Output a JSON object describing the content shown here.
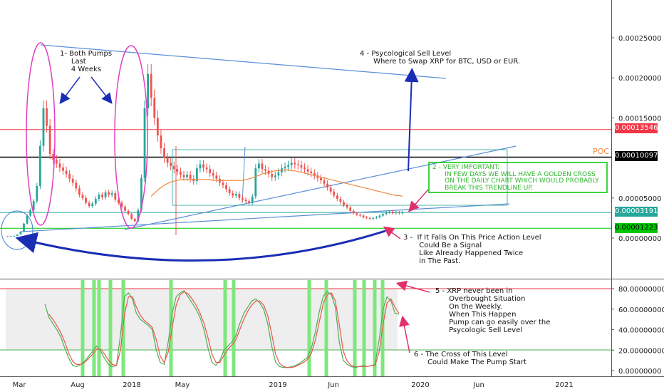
{
  "chart_data": [
    {
      "type": "candlestick",
      "price_axis": {
        "ticks": [
          "0.00025000",
          "0.00020000",
          "0.00015000",
          "0.00005000",
          "0.00000000"
        ],
        "ylim": [
          -1.2e-05,
          0.00029
        ]
      },
      "time_axis": {
        "ticks": [
          "Mar",
          "Aug",
          "2018",
          "May",
          "2019",
          "Jun",
          "2020",
          "Jun",
          "2021"
        ]
      },
      "price_series": [
        2.4e-06,
        2.3e-06,
        2.5e-06,
        2.8e-06,
        4.5e-06,
        8e-06,
        1.8e-05,
        2.8e-05,
        3.5e-05,
        4.6e-05,
        6.5e-05,
        0.000115,
        0.000162,
        0.00014,
        0.000105,
        9.8e-05,
        9.3e-05,
        8.8e-05,
        8.4e-05,
        8e-05,
        7.4e-05,
        6.9e-05,
        6.2e-05,
        5.4e-05,
        5e-05,
        4.4e-05,
        4e-05,
        4.3e-05,
        4.9e-05,
        5.4e-05,
        5.1e-05,
        5.7e-05,
        5.4e-05,
        5.6e-05,
        4.8e-05,
        4.4e-05,
        3.9e-05,
        3.4e-05,
        3e-05,
        2.4e-05,
        2.1e-05,
        3.5e-05,
        7.5e-05,
        0.000162,
        0.000205,
        0.000175,
        0.00015,
        0.000128,
        0.000112,
        0.0001,
        9.4e-05,
        9e-05,
        8.6e-05,
        8.3e-05,
        7.9e-05,
        7.6e-05,
        7.9e-05,
        7.4e-05,
        7.1e-05,
        8.7e-05,
        9.2e-05,
        8.8e-05,
        8.6e-05,
        8.1e-05,
        7.8e-05,
        7.4e-05,
        6.9e-05,
        6.6e-05,
        6.1e-05,
        5.6e-05,
        5.3e-05,
        5.5e-05,
        5e-05,
        4.8e-05,
        4.6e-05,
        4.4e-05,
        5.2e-05,
        8.7e-05,
        9.3e-05,
        8.6e-05,
        8.4e-05,
        8e-05,
        7.6e-05,
        7.8e-05,
        8.2e-05,
        8.7e-05,
        8.9e-05,
        9.1e-05,
        9.4e-05,
        9.2e-05,
        9.1e-05,
        8.8e-05,
        8.6e-05,
        8.3e-05,
        8.1e-05,
        7.8e-05,
        7.5e-05,
        7.2e-05,
        6.8e-05,
        6.3e-05,
        5.8e-05,
        5.3e-05,
        4.9e-05,
        4.5e-05,
        4.1e-05,
        3.8e-05,
        3.4e-05,
        3.1e-05,
        2.9e-05,
        2.8e-05,
        2.6e-05,
        2.5e-05,
        2.4e-05,
        2.5e-05,
        2.6e-05,
        2.8e-05,
        3e-05,
        3.2e-05,
        3.3e-05,
        3.1e-05,
        3.2e-05,
        3.1e-05,
        3.2e-05
      ],
      "horizontal_levels": [
        {
          "price": 0.00013546,
          "label": "0.00013546",
          "color": "#f23645"
        },
        {
          "price": 0.00010097,
          "label": "0.00010097",
          "color": "#000000",
          "tag": "POC"
        },
        {
          "price": 3.191e-05,
          "label": "0.00003191",
          "color": "#26a69a"
        },
        {
          "price": 1.223e-05,
          "label": "0.00001223",
          "color": "#00c800"
        }
      ],
      "moving_average": [
        null,
        null,
        null,
        null,
        null,
        null,
        null,
        null,
        null,
        null,
        null,
        null,
        null,
        null,
        null,
        null,
        null,
        null,
        null,
        null,
        null,
        null,
        null,
        null,
        null,
        null,
        null,
        null,
        null,
        null,
        null,
        null,
        null,
        null,
        null,
        null,
        null,
        null,
        null,
        null,
        null,
        null,
        null,
        null,
        null,
        5.2e-05,
        5.6e-05,
        6e-05,
        6.3e-05,
        6.6e-05,
        6.8e-05,
        7e-05,
        7.1e-05,
        7.2e-05,
        7.3e-05,
        7.3e-05,
        7.3e-05,
        7.3e-05,
        7.3e-05,
        7.3e-05,
        7.3e-05,
        7.3e-05,
        7.3e-05,
        7.3e-05,
        7.2e-05,
        7.2e-05,
        7.2e-05,
        7.2e-05,
        7.2e-05,
        7.2e-05,
        7.2e-05,
        7.2e-05,
        7.2e-05,
        7.2e-05,
        7.3e-05,
        7.4e-05,
        7.5e-05,
        7.7e-05,
        7.8e-05,
        8e-05,
        8.1e-05,
        8.2e-05,
        8.3e-05,
        8.4e-05,
        8.4e-05,
        8.5e-05,
        8.5e-05,
        8.5e-05,
        8.4e-05,
        8.4e-05,
        8.3e-05,
        8.2e-05,
        8.1e-05,
        8e-05,
        7.9e-05,
        7.8e-05,
        7.7e-05,
        7.6e-05,
        7.5e-05,
        7.4e-05,
        7.3e-05,
        7.2e-05,
        7.1e-05,
        7e-05,
        6.9e-05,
        6.8e-05,
        6.7e-05,
        6.6e-05,
        6.5e-05,
        6.4e-05,
        6.3e-05,
        6.2e-05,
        6.1e-05,
        6e-05,
        5.9e-05,
        5.8e-05,
        5.7e-05,
        5.6e-05,
        5.5e-05,
        5.4e-05,
        5.3e-05,
        5.3e-05,
        5.2e-05
      ],
      "colors": {
        "up": "#26a69a",
        "down": "#ef5350",
        "ma": "#f0883e",
        "trend": "#5b8fd9"
      }
    },
    {
      "type": "line",
      "indicator": "stochastic",
      "y_axis": {
        "ticks": [
          "80.00000000",
          "60.00000000",
          "40.00000000",
          "20.00000000",
          "0.00000000"
        ],
        "ylim": [
          -4,
          90
        ]
      },
      "overbought": 80,
      "oversold": 20,
      "series": [
        {
          "values": [
            65,
            52,
            46,
            40,
            33,
            22,
            12,
            5,
            4,
            6,
            9,
            14,
            19,
            24,
            19,
            12,
            6,
            4,
            5,
            35,
            72,
            76,
            70,
            56,
            50,
            47,
            44,
            40,
            20,
            8,
            6,
            28,
            56,
            72,
            76,
            78,
            72,
            66,
            60,
            52,
            40,
            22,
            8,
            5,
            10,
            20,
            24,
            28,
            34,
            46,
            56,
            62,
            68,
            70,
            66,
            60,
            46,
            24,
            8,
            4,
            3,
            3,
            4,
            5,
            7,
            10,
            13,
            22,
            38,
            58,
            73,
            77,
            74,
            62,
            28,
            10,
            6,
            4,
            3,
            4,
            5,
            4,
            5,
            6,
            30,
            60,
            72,
            68,
            56,
            55
          ],
          "color": "#4caf50"
        },
        {
          "values": [
            null,
            55,
            50,
            44,
            37,
            28,
            17,
            9,
            6,
            6,
            8,
            12,
            16,
            21,
            21,
            16,
            10,
            6,
            5,
            20,
            55,
            72,
            72,
            62,
            54,
            49,
            46,
            42,
            30,
            14,
            8,
            18,
            42,
            64,
            74,
            77,
            75,
            70,
            64,
            56,
            46,
            32,
            16,
            8,
            8,
            15,
            21,
            25,
            30,
            40,
            50,
            58,
            64,
            68,
            68,
            64,
            54,
            36,
            16,
            7,
            4,
            3,
            3,
            4,
            6,
            8,
            11,
            17,
            30,
            48,
            66,
            74,
            76,
            68,
            45,
            19,
            9,
            5,
            4,
            4,
            4,
            4,
            5,
            5,
            18,
            45,
            66,
            70,
            62,
            56
          ],
          "color": "#ef5350"
        }
      ],
      "signal_bars_x": [
        116,
        132,
        139,
        155,
        173,
        240,
        316,
        328,
        434,
        458,
        498,
        511,
        526,
        537
      ]
    }
  ],
  "annotations": {
    "pumps": "1- Both Pumps\n     Last\n     4 Weeks",
    "sell_level": "4 - Psycological Sell Level\n      Where to Swap XRP for BTC, USD or EUR.",
    "golden_cross": "2 - VERY IMPORTANT:\n      IN FEW DAYS WE WILL HAVE A GOLDEN CROSS\n      ON THE DAILY CHART WHICH WOULD PROBABLY\n      BREAK THIS TRENDLINE UP.",
    "price_action": "3 -  If It Falls On This Price Action Level\n       Could Be a Signal\n       Like Already Happened Twice\n       in The Past.",
    "overbought": "5 - XRP never been in\n      Overbought Situation\n      On the Weekly.\n      When This Happen\n      Pump can go easily over the\n      Psycologic Sell Level",
    "cross": "6 - The Cross of This Level\n      Could Make The Pump Start",
    "poc": "POC"
  },
  "colors": {
    "poc": "#f0883e",
    "ellipse": "#e040c0",
    "arrow": "#1a2db5",
    "pink_arrow": "#e0306a",
    "box": "#00c800"
  }
}
